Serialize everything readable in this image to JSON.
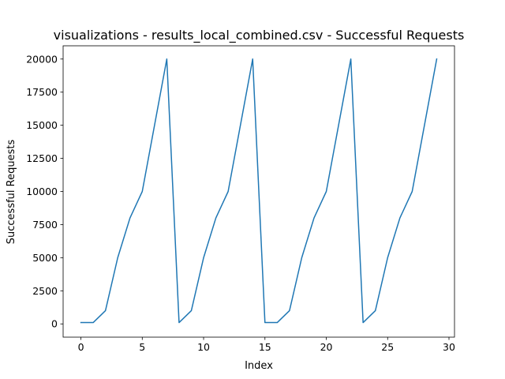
{
  "chart_data": {
    "type": "line",
    "title": "visualizations - results_local_combined.csv - Successful Requests",
    "xlabel": "Index",
    "ylabel": "Successful Requests",
    "xlim": [
      -1.45,
      30.45
    ],
    "ylim": [
      -1000,
      21000
    ],
    "xticks": [
      0,
      5,
      10,
      15,
      20,
      25,
      30
    ],
    "yticks": [
      0,
      2500,
      5000,
      7500,
      10000,
      12500,
      15000,
      17500,
      20000
    ],
    "grid": false,
    "series": [
      {
        "color": "#1f77b4",
        "x": [
          0,
          1,
          2,
          3,
          4,
          5,
          6,
          7,
          8,
          9,
          10,
          11,
          12,
          13,
          14,
          15,
          16,
          17,
          18,
          19,
          20,
          21,
          22,
          23,
          24,
          25,
          26,
          27,
          28,
          29
        ],
        "y": [
          100,
          100,
          1000,
          5000,
          8000,
          10000,
          15000,
          20000,
          100,
          1000,
          5000,
          8000,
          10000,
          15000,
          20000,
          100,
          100,
          1000,
          5000,
          8000,
          10000,
          15000,
          20000,
          100,
          1000,
          5000,
          8000,
          10000,
          15000,
          20000
        ]
      }
    ]
  }
}
